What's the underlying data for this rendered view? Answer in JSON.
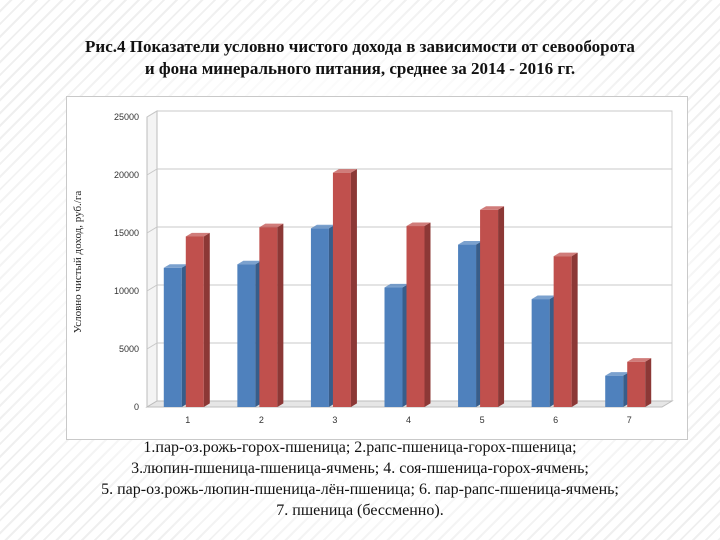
{
  "title": {
    "line1": "Рис.4 Показатели условно чистого дохода в зависимости от севооборота",
    "line2": "и фона минерального питания, среднее за 2014 - 2016 гг."
  },
  "legend_lines": [
    "1.пар-оз.рожь-горох-пшеница;  2.рапс-пшеница-горох-пшеница;",
    "3.люпин-пшеница-пшеница-ячмень;  4. соя-пшеница-горох-ячмень;",
    "5. пар-оз.рожь-люпин-пшеница-лён-пшеница;  6. пар-рапс-пшеница-ячмень;",
    "7. пшеница (бессменно)."
  ],
  "colors": {
    "series1": "#4f81bd",
    "series1_dark": "#385d8a",
    "series2": "#c0504d",
    "series2_dark": "#8c3836",
    "gridline": "#c8c8c8"
  },
  "chart_data": {
    "type": "bar",
    "style": "3d-clustered-column",
    "categories": [
      "1",
      "2",
      "3",
      "4",
      "5",
      "6",
      "7"
    ],
    "series": [
      {
        "values": [
          12000,
          12300,
          15400,
          10300,
          14000,
          9300,
          2700
        ]
      },
      {
        "values": [
          14700,
          15500,
          20200,
          15600,
          17000,
          13000,
          3900
        ]
      }
    ],
    "ylabel": "Условно чистый доход, руб./га",
    "ylim": [
      0,
      25000
    ],
    "yticks": [
      0,
      5000,
      10000,
      15000,
      20000,
      25000
    ],
    "grid": true,
    "legend": "none"
  }
}
